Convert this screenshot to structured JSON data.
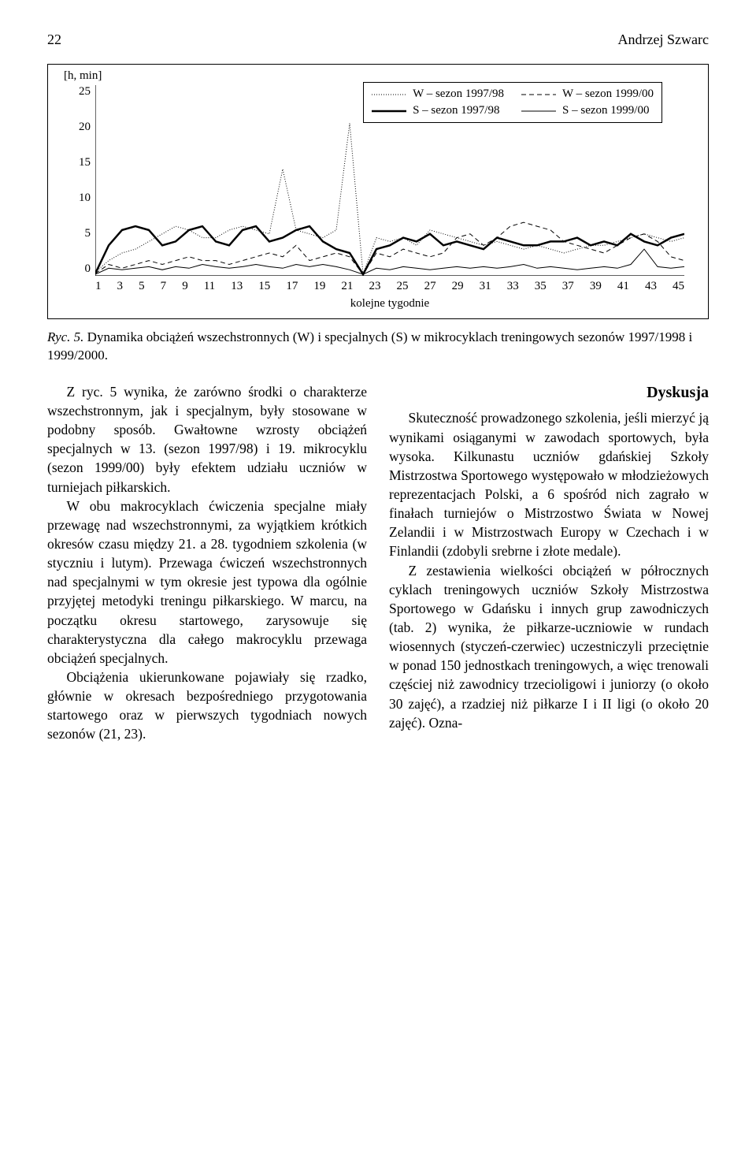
{
  "header": {
    "page_number": "22",
    "author": "Andrzej Szwarc"
  },
  "chart": {
    "type": "line",
    "y_unit": "[h, min]",
    "ylim": [
      0,
      25
    ],
    "ytick_step": 5,
    "yticks": [
      "25",
      "20",
      "15",
      "10",
      "5",
      "0"
    ],
    "x_label": "kolejne tygodnie",
    "xticks": [
      "1",
      "3",
      "5",
      "7",
      "9",
      "11",
      "13",
      "15",
      "17",
      "19",
      "21",
      "23",
      "25",
      "27",
      "29",
      "31",
      "33",
      "35",
      "37",
      "39",
      "41",
      "43",
      "45"
    ],
    "background_color": "#ffffff",
    "axis_color": "#000000",
    "legend": {
      "items": [
        {
          "label": "W – sezon 1997/98",
          "stroke": "#000000",
          "width": 1,
          "dash": "1 2"
        },
        {
          "label": "W – sezon 1999/00",
          "stroke": "#000000",
          "width": 1,
          "dash": "6 4"
        },
        {
          "label": "S – sezon 1997/98",
          "stroke": "#000000",
          "width": 2.5,
          "dash": ""
        },
        {
          "label": "S – sezon 1999/00",
          "stroke": "#000000",
          "width": 1,
          "dash": ""
        }
      ]
    },
    "series": {
      "w9798": {
        "stroke": "#000000",
        "width": 1,
        "dash": "1 2",
        "y": [
          0.5,
          2,
          3,
          3.5,
          4.5,
          5.5,
          6.5,
          6,
          5,
          5,
          6,
          6.5,
          6,
          5.5,
          14,
          6,
          5.5,
          5,
          6,
          20,
          0.2,
          5,
          4.5,
          5,
          4,
          6,
          5.5,
          5,
          4.5,
          4,
          4.5,
          4,
          3.5,
          4,
          3.5,
          3,
          3.5,
          4,
          4,
          4.5,
          5,
          5.5,
          5,
          4.5,
          5
        ]
      },
      "w9900": {
        "stroke": "#000000",
        "width": 1,
        "dash": "6 4",
        "y": [
          0.3,
          1.5,
          1,
          1.5,
          2,
          1.5,
          2,
          2.5,
          2,
          2,
          1.5,
          2,
          2.5,
          3,
          2.5,
          4,
          2,
          2.5,
          3,
          2.5,
          0.2,
          3,
          2.5,
          3.5,
          3,
          2.5,
          3,
          5,
          5.5,
          4,
          5,
          6.5,
          7,
          6.5,
          6,
          4.5,
          4,
          3.5,
          3,
          4,
          5,
          5.5,
          4.5,
          2.5,
          2
        ]
      },
      "s9798": {
        "stroke": "#000000",
        "width": 2.5,
        "dash": "",
        "y": [
          0.3,
          4,
          6,
          6.5,
          6,
          4,
          4.5,
          6,
          6.5,
          4.5,
          4,
          6,
          6.5,
          4.5,
          5,
          6,
          6.5,
          4.5,
          3.5,
          3,
          0.2,
          3.5,
          4,
          5,
          4.5,
          5.5,
          4,
          4.5,
          4,
          3.5,
          5,
          4.5,
          4,
          4,
          4.5,
          4.5,
          5,
          4,
          4.5,
          4,
          5.5,
          4.5,
          4,
          5,
          5.5
        ]
      },
      "s9900": {
        "stroke": "#000000",
        "width": 1,
        "dash": "",
        "y": [
          0.2,
          1,
          0.8,
          1,
          1.2,
          0.8,
          1.2,
          1,
          1.5,
          1.2,
          1,
          1.2,
          1.5,
          1.2,
          1,
          1.5,
          1.2,
          1.5,
          1.2,
          0.8,
          0.2,
          1,
          0.8,
          1.2,
          1,
          0.8,
          1,
          1.2,
          1,
          1.2,
          1,
          1.2,
          1.5,
          1,
          1.2,
          1,
          0.8,
          1,
          1.2,
          1,
          1.5,
          3.5,
          1.2,
          1,
          1.2
        ]
      }
    }
  },
  "caption": {
    "ryc": "Ryc. 5.",
    "text": "Dynamika obciążeń wszechstronnych (W) i specjalnych (S) w mikrocyklach treningowych sezonów 1997/1998 i 1999/2000."
  },
  "body": {
    "p1": "Z ryc. 5 wynika, że zarówno środki o charakterze wszechstronnym, jak i specjalnym, były stosowane w podobny sposób. Gwałtowne wzrosty obciążeń specjalnych w 13. (sezon 1997/98) i 19. mikrocyklu (sezon 1999/00) były efektem udziału uczniów w turniejach piłkarskich.",
    "p2": "W obu makrocyklach ćwiczenia specjalne miały przewagę nad wszechstronnymi, za wyjątkiem krótkich okresów czasu między 21. a 28. tygodniem szkolenia (w styczniu i lutym). Przewaga ćwiczeń wszechstronnych nad specjalnymi w tym okresie jest typowa dla ogólnie przyjętej metodyki treningu piłkarskiego. W marcu, na początku okresu startowego, zarysowuje się charakterystyczna dla całego makrocyklu przewaga obciążeń specjalnych.",
    "p3": "Obciążenia ukierunkowane pojawiały się rzadko, głównie w okresach bezpośredniego przygotowania startowego oraz w pierwszych tygodniach nowych sezonów (21, 23).",
    "section_title": "Dyskusja",
    "p4": "Skuteczność prowadzonego szkolenia, jeśli mierzyć ją wynikami osiąganymi w zawodach sportowych, była wysoka. Kilkunastu uczniów gdańskiej Szkoły Mistrzostwa Sportowego występowało w młodzieżowych reprezentacjach Polski, a 6 spośród nich zagrało w finałach turniejów o Mistrzostwo Świata w Nowej Zelandii i w Mistrzostwach Europy w Czechach i w Finlandii (zdobyli srebrne i złote medale).",
    "p5": "Z zestawienia wielkości obciążeń w półrocznych cyklach treningowych uczniów Szkoły Mistrzostwa Sportowego w Gdańsku i innych grup zawodniczych (tab. 2) wynika, że piłkarze-uczniowie w rundach wiosennych (styczeń-czerwiec) uczestniczyli przeciętnie w ponad 150 jednostkach treningowych, a więc trenowali częściej niż zawodnicy trzecioligowi i juniorzy (o około 30 zajęć), a rzadziej niż piłkarze I i II ligi (o około 20 zajęć). Ozna-"
  }
}
